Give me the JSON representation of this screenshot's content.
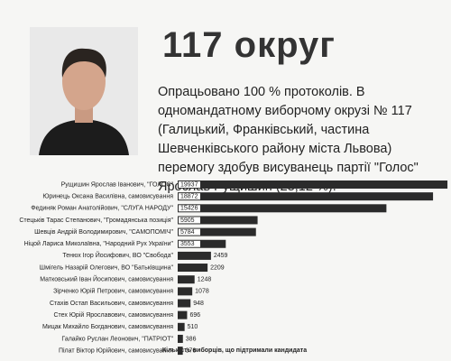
{
  "chart_data": {
    "type": "bar",
    "orientation": "horizontal",
    "title": "117 округ",
    "subtitle": "Опрацьовано 100 % протоколів. В одномандатному виборчому окрузі № 117 (Галицький, Франківський, частина Шевченківського району міста Львова) перемогу здобув висуванець партії \"Голос\" Ярослав Рущишин (25,12 %).",
    "xlabel": "Кількість виборців, що підтримали кандидата",
    "categories": [
      "Рущишин Ярослав Іванович, \"ГОЛОС\"",
      "Юринець Оксана Василівна, самовисування",
      "Фединяк Роман Анатолійович, \"СЛУГА НАРОДУ\"",
      "Стецьків Тарас Степанович, \"Громадянська позиція\"",
      "Шевців Андрій Володимирович, \"САМОПОМІЧ\"",
      "Ніцой Лариса Миколаївна, \"Народний Рух України\"",
      "Тенюх Ігор Йосифович, ВО \"Свобода\"",
      "Шмігель Назарій Олегович, ВО \"Батьківщина\"",
      "Матковський Іван Йосипович, самовисування",
      "Зірченко Юрій Петрович, самовисування",
      "Стахів Остап Васильович, самовисування",
      "Стех Юрій Ярославович, самовисування",
      "Мицак Михайло Богданович, самовисування",
      "Галайко Руслан Леонович, \"ПАТРІОТ\"",
      "Пілат Віктор Юрійович, самовисування"
    ],
    "values": [
      19937,
      18872,
      15426,
      5905,
      5784,
      3553,
      2459,
      2209,
      1248,
      1078,
      948,
      696,
      510,
      386,
      376
    ],
    "color": "#2b2b2b",
    "xlim": [
      0,
      20000
    ]
  }
}
